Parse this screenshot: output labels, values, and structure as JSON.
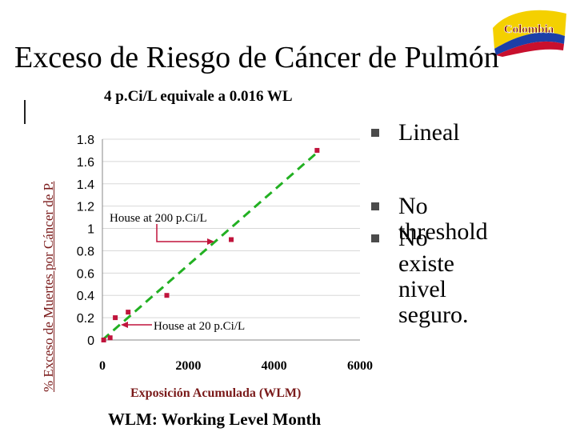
{
  "slide": {
    "title": "Exceso de Riesgo de Cáncer de Pulmón",
    "subtitle": "4 p.Ci/L equivale a 0.016 WL",
    "footer": "WLM:  Working Level Month",
    "logo_text": "Colombia",
    "bullets": [
      {
        "text": "Lineal"
      },
      {
        "text": "No threshold"
      },
      {
        "text": "No existe nivel\nseguro."
      }
    ]
  },
  "chart_data": {
    "type": "scatter",
    "title": "",
    "xlabel": "Exposición Acumulada (WLM)",
    "ylabel": "% Exceso de Muertes por Cáncer de P.",
    "xlim": [
      0,
      6000
    ],
    "ylim": [
      0,
      1.8
    ],
    "x_ticks": [
      "0",
      "2000",
      "4000",
      "6000"
    ],
    "y_ticks": [
      "0",
      "0.2",
      "0.4",
      "0.6",
      "0.8",
      "1",
      "1.2",
      "1.4",
      "1.6",
      "1.8"
    ],
    "series": [
      {
        "color": "#c0143c",
        "points": [
          {
            "x": 30,
            "y": 0.0
          },
          {
            "x": 180,
            "y": 0.02
          },
          {
            "x": 300,
            "y": 0.2
          },
          {
            "x": 600,
            "y": 0.25
          },
          {
            "x": 1500,
            "y": 0.4
          },
          {
            "x": 3000,
            "y": 0.9
          },
          {
            "x": 5000,
            "y": 1.7
          }
        ]
      }
    ],
    "trendline": {
      "style": "dashed",
      "color": "#22b022",
      "from": {
        "x": 0,
        "y": 0
      },
      "to": {
        "x": 5000,
        "y": 1.68
      }
    },
    "annotations": [
      {
        "text": "House at 200 p.Ci/L",
        "x": 3000,
        "y": 0.9
      },
      {
        "text": "House at 20 p.Ci/L",
        "x": 300,
        "y": 0.2
      }
    ]
  }
}
